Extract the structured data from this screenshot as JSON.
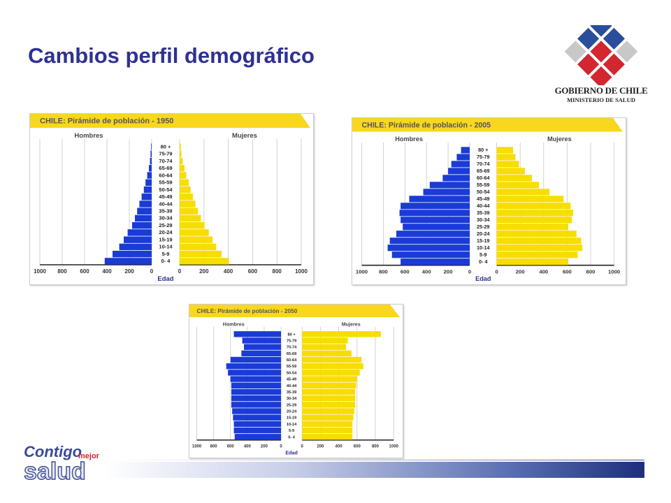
{
  "slide": {
    "title": "Cambios perfil demográfico"
  },
  "logo": {
    "line1": "GOBIERNO DE CHILE",
    "line2": "MINISTERIO DE SALUD"
  },
  "footer_logo": {
    "word1": "Contigo",
    "word2": "mejor",
    "word3": "salud"
  },
  "colors": {
    "title": "#2e3192",
    "men": "#1a3bd6",
    "women": "#f7dd00",
    "banner": "#f9d71c"
  },
  "chart_data": [
    {
      "type": "bar",
      "title": "CHILE: Pirámide de población  - 1950",
      "left_label": "Hombres",
      "right_label": "Mujeres",
      "xlabel": "Edad",
      "categories": [
        "80 +",
        "75-79",
        "70-74",
        "65-69",
        "60-64",
        "55-59",
        "50-54",
        "45-49",
        "40-44",
        "35-39",
        "30-34",
        "25-29",
        "20-24",
        "15-19",
        "10-14",
        "5-9",
        "0- 4"
      ],
      "ticks": [
        "1000",
        "800",
        "600",
        "400",
        "200",
        "0"
      ],
      "xlim": [
        0,
        1000
      ],
      "series": [
        {
          "name": "Hombres",
          "values": [
            5,
            10,
            15,
            25,
            40,
            55,
            70,
            90,
            110,
            130,
            150,
            175,
            215,
            250,
            290,
            350,
            420
          ]
        },
        {
          "name": "Mujeres",
          "values": [
            10,
            15,
            25,
            40,
            55,
            75,
            90,
            110,
            130,
            150,
            175,
            205,
            240,
            270,
            300,
            345,
            405
          ]
        }
      ]
    },
    {
      "type": "bar",
      "title": "CHILE: Pirámide de población  - 2005",
      "left_label": "Hombres",
      "right_label": "Mujeres",
      "xlabel": "Edad",
      "categories": [
        "80 +",
        "75-79",
        "70-74",
        "65-69",
        "60-64",
        "55-59",
        "50-54",
        "45-49",
        "40-44",
        "35-39",
        "30-34",
        "25-29",
        "20-24",
        "15-19",
        "10-14",
        "5-9",
        "0- 4"
      ],
      "ticks": [
        "1000",
        "800",
        "600",
        "400",
        "200",
        "0"
      ],
      "xlim": [
        0,
        1000
      ],
      "series": [
        {
          "name": "Hombres",
          "values": [
            80,
            120,
            170,
            200,
            250,
            370,
            430,
            560,
            640,
            650,
            640,
            620,
            680,
            740,
            760,
            720,
            640
          ]
        },
        {
          "name": "Mujeres",
          "values": [
            140,
            160,
            190,
            240,
            300,
            360,
            450,
            570,
            630,
            650,
            640,
            610,
            680,
            720,
            730,
            690,
            610
          ]
        }
      ]
    },
    {
      "type": "bar",
      "title": "CHILE: Pirámide de población  - 2050",
      "left_label": "Hombres",
      "right_label": "Mujeres",
      "xlabel": "Edad",
      "categories": [
        "80 +",
        "75-79",
        "70-74",
        "65-69",
        "60-64",
        "55-59",
        "50-54",
        "45-49",
        "40-44",
        "35-39",
        "30-34",
        "25-29",
        "20-24",
        "15-19",
        "10-14",
        "5-9",
        "0- 4"
      ],
      "ticks": [
        "1000",
        "800",
        "600",
        "400",
        "200",
        "0"
      ],
      "xlim": [
        0,
        1000
      ],
      "series": [
        {
          "name": "Hombres",
          "values": [
            560,
            460,
            440,
            470,
            600,
            650,
            630,
            600,
            590,
            590,
            590,
            590,
            580,
            570,
            560,
            560,
            550
          ]
        },
        {
          "name": "Mujeres",
          "values": [
            860,
            500,
            480,
            540,
            650,
            670,
            630,
            600,
            590,
            580,
            580,
            580,
            570,
            560,
            550,
            550,
            550
          ]
        }
      ]
    }
  ]
}
